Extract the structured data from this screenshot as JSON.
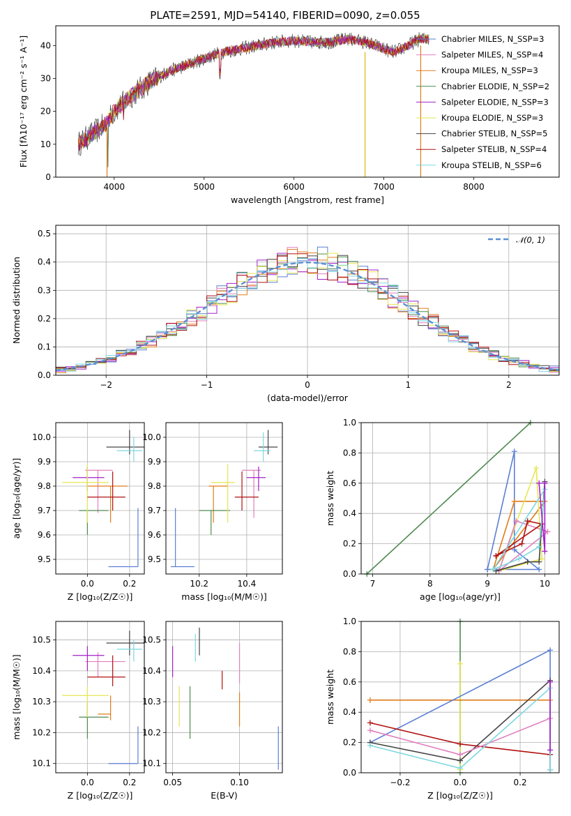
{
  "title": "PLATE=2591, MJD=54140, FIBERID=0090, z=0.055",
  "colors": {
    "chabrier_miles": "#5b7fd4",
    "salpeter_miles": "#e07fbf",
    "kroupa_miles": "#e07b1a",
    "chabrier_elodie": "#4f8a4f",
    "salpeter_elodie": "#a020c8",
    "kroupa_elodie": "#e6e650",
    "chabrier_stelib": "#444444",
    "salpeter_stelib": "#b01010",
    "kroupa_stelib": "#7dd8e0"
  },
  "chart_data": [
    {
      "type": "line",
      "xlabel": "wavelength [Angstrom, rest frame]",
      "ylabel": "Flux [fλ10⁻¹⁷ erg cm⁻² s⁻¹ A⁻¹]",
      "xlim": [
        3350,
        8950
      ],
      "ylim": [
        0,
        46
      ],
      "xticks": [
        4000,
        5000,
        6000,
        7000,
        8000
      ],
      "yticks": [
        0,
        10,
        20,
        30,
        40
      ],
      "legend_position": "right",
      "series": [
        {
          "name": "Chabrier MILES, N_SSP=3",
          "color": "#5b7fd4"
        },
        {
          "name": "Salpeter MILES, N_SSP=4",
          "color": "#e07fbf"
        },
        {
          "name": "Kroupa MILES, N_SSP=3",
          "color": "#e07b1a"
        },
        {
          "name": "Chabrier ELODIE, N_SSP=2",
          "color": "#4f8a4f"
        },
        {
          "name": "Salpeter ELODIE, N_SSP=3",
          "color": "#a020c8"
        },
        {
          "name": "Kroupa ELODIE, N_SSP=3",
          "color": "#e6e650"
        },
        {
          "name": "Chabrier STELIB, N_SSP=5",
          "color": "#444444"
        },
        {
          "name": "Salpeter STELIB, N_SSP=4",
          "color": "#b01010"
        },
        {
          "name": "Kroupa STELIB, N_SSP=6",
          "color": "#7dd8e0"
        }
      ],
      "continuum": {
        "x": [
          3600,
          3750,
          3900,
          4000,
          4200,
          4400,
          4600,
          4800,
          5000,
          5200,
          5400,
          5600,
          5800,
          6000,
          6200,
          6400,
          6600,
          6800,
          7000,
          7100,
          7200,
          7400,
          7500
        ],
        "y": [
          10,
          13,
          16,
          20,
          25,
          29,
          32,
          34,
          36,
          38,
          39,
          40,
          41,
          41.5,
          41,
          41,
          42,
          41,
          39,
          38,
          39,
          42,
          42
        ]
      }
    },
    {
      "type": "line",
      "xlabel": "(data-model)/error",
      "ylabel": "Normed distribution",
      "xlim": [
        -2.5,
        2.5
      ],
      "ylim": [
        0,
        0.53
      ],
      "xticks": [
        -2,
        -1,
        0,
        1,
        2
      ],
      "yticks": [
        0.0,
        0.1,
        0.2,
        0.3,
        0.4,
        0.5
      ],
      "legend": "𝒩(0, 1)",
      "legend_position": "top-right",
      "bin_width": 0.1
    },
    {
      "type": "scatter",
      "xlabel": "Z [log₁₀(Z/Z☉)]",
      "ylabel": "age  [log₁₀(age/yr)]",
      "xlim": [
        -0.15,
        0.27
      ],
      "ylim": [
        9.44,
        10.06
      ],
      "xticks": [
        0.0,
        0.2
      ],
      "yticks": [
        9.5,
        9.6,
        9.7,
        9.8,
        9.9,
        10.0
      ],
      "points": [
        {
          "c": "#5b7fd4",
          "x": 0.24,
          "xe": [
            0.1,
            0.24
          ],
          "y": 9.47,
          "ye": [
            9.47,
            9.71
          ]
        },
        {
          "c": "#e07fbf",
          "x": 0.05,
          "xe": [
            -0.01,
            0.12
          ],
          "y": 9.865,
          "ye": [
            9.69,
            9.865
          ]
        },
        {
          "c": "#e07b1a",
          "x": 0.11,
          "xe": [
            0.0,
            0.19
          ],
          "y": 9.8,
          "ye": [
            9.65,
            9.8
          ]
        },
        {
          "c": "#4f8a4f",
          "x": 0.0,
          "xe": [
            -0.04,
            0.1
          ],
          "y": 9.7,
          "ye": [
            9.6,
            9.7
          ]
        },
        {
          "c": "#a020c8",
          "x": 0.0,
          "xe": [
            -0.07,
            0.08
          ],
          "y": 9.835,
          "ye": [
            9.78,
            9.88
          ]
        },
        {
          "c": "#e6e650",
          "x": 0.0,
          "xe": [
            -0.12,
            0.1
          ],
          "y": 9.815,
          "ye": [
            9.65,
            9.89
          ]
        },
        {
          "c": "#444444",
          "x": 0.2,
          "xe": [
            0.09,
            0.27
          ],
          "y": 9.96,
          "ye": [
            9.93,
            10.03
          ]
        },
        {
          "c": "#b01010",
          "x": 0.12,
          "xe": [
            0.0,
            0.18
          ],
          "y": 9.755,
          "ye": [
            9.7,
            9.86
          ]
        },
        {
          "c": "#7dd8e0",
          "x": 0.22,
          "xe": [
            0.14,
            0.26
          ],
          "y": 9.945,
          "ye": [
            9.9,
            10.0
          ]
        }
      ]
    },
    {
      "type": "scatter",
      "xlabel": "mass [log₁₀(M/M☉)]",
      "ylabel": "",
      "xlim": [
        10.06,
        10.55
      ],
      "ylim": [
        9.44,
        10.06
      ],
      "xticks": [
        10.2,
        10.4
      ],
      "yticks": [
        9.5,
        9.6,
        9.7,
        9.8,
        9.9,
        10.0
      ],
      "points": [
        {
          "c": "#5b7fd4",
          "x": 10.1,
          "xe": [
            10.08,
            10.18
          ],
          "y": 9.47,
          "ye": [
            9.47,
            9.71
          ]
        },
        {
          "c": "#e07fbf",
          "x": 10.43,
          "xe": [
            10.38,
            10.46
          ],
          "y": 9.865,
          "ye": [
            9.67,
            9.865
          ]
        },
        {
          "c": "#e07b1a",
          "x": 10.26,
          "xe": [
            10.24,
            10.32
          ],
          "y": 9.8,
          "ye": [
            9.65,
            9.8
          ]
        },
        {
          "c": "#4f8a4f",
          "x": 10.25,
          "xe": [
            10.2,
            10.33
          ],
          "y": 9.7,
          "ye": [
            9.6,
            9.7
          ]
        },
        {
          "c": "#a020c8",
          "x": 10.45,
          "xe": [
            10.4,
            10.48
          ],
          "y": 9.835,
          "ye": [
            9.78,
            9.88
          ]
        },
        {
          "c": "#e6e650",
          "x": 10.32,
          "xe": [
            10.25,
            10.35
          ],
          "y": 9.815,
          "ye": [
            9.65,
            9.89
          ]
        },
        {
          "c": "#444444",
          "x": 10.49,
          "xe": [
            10.45,
            10.53
          ],
          "y": 9.96,
          "ye": [
            9.93,
            10.03
          ]
        },
        {
          "c": "#b01010",
          "x": 10.38,
          "xe": [
            10.35,
            10.45
          ],
          "y": 9.755,
          "ye": [
            9.7,
            9.86
          ]
        },
        {
          "c": "#7dd8e0",
          "x": 10.47,
          "xe": [
            10.43,
            10.5
          ],
          "y": 9.945,
          "ye": [
            9.9,
            10.02
          ]
        }
      ]
    },
    {
      "type": "line",
      "xlabel": "age  [log₁₀(age/yr)]",
      "ylabel": "mass weight",
      "xlim": [
        6.8,
        10.25
      ],
      "ylim": [
        0,
        1
      ],
      "xticks": [
        7,
        8,
        9,
        10
      ],
      "yticks": [
        0.0,
        0.2,
        0.4,
        0.6,
        0.8,
        1.0
      ],
      "series": [
        {
          "c": "#4f8a4f",
          "x": [
            6.9,
            9.75
          ],
          "y": [
            0.0,
            1.0
          ]
        },
        {
          "c": "#5b7fd4",
          "x": [
            9.0,
            9.47,
            9.47,
            9.9,
            9.0
          ],
          "y": [
            0.03,
            0.81,
            0.16,
            0.03,
            0.03
          ]
        },
        {
          "c": "#e07b1a",
          "x": [
            9.1,
            9.47,
            10.0,
            9.1
          ],
          "y": [
            0.03,
            0.48,
            0.48,
            0.03
          ]
        },
        {
          "c": "#e6e650",
          "x": [
            9.2,
            9.85,
            9.95,
            9.2
          ],
          "y": [
            0.02,
            0.7,
            0.1,
            0.02
          ]
        },
        {
          "c": "#e07fbf",
          "x": [
            9.2,
            9.5,
            10.05,
            9.2
          ],
          "y": [
            0.02,
            0.35,
            0.28,
            0.02
          ]
        },
        {
          "c": "#b01010",
          "x": [
            9.15,
            9.6,
            9.7,
            9.95,
            9.15
          ],
          "y": [
            0.12,
            0.2,
            0.35,
            0.33,
            0.12
          ]
        },
        {
          "c": "#444444",
          "x": [
            9.15,
            9.7,
            9.9,
            10.0
          ],
          "y": [
            0.02,
            0.08,
            0.08,
            0.61
          ]
        },
        {
          "c": "#7dd8e0",
          "x": [
            9.1,
            9.55,
            9.9,
            10.0,
            9.1
          ],
          "y": [
            0.03,
            0.1,
            0.18,
            0.56,
            0.03
          ]
        },
        {
          "c": "#a020c8",
          "x": [
            9.9,
            10.0,
            10.0
          ],
          "y": [
            0.6,
            0.15,
            0.6
          ]
        }
      ]
    },
    {
      "type": "scatter",
      "xlabel": "Z [log₁₀(Z/Z☉)]",
      "ylabel": "mass [log₁₀(M/M☉)]",
      "xlim": [
        -0.15,
        0.27
      ],
      "ylim": [
        10.07,
        10.56
      ],
      "xticks": [
        0.0,
        0.2
      ],
      "yticks": [
        10.1,
        10.2,
        10.3,
        10.4,
        10.5
      ],
      "points": [
        {
          "c": "#5b7fd4",
          "x": 0.24,
          "xe": [
            0.1,
            0.24
          ],
          "y": 10.1,
          "ye": [
            10.1,
            10.22
          ]
        },
        {
          "c": "#e07fbf",
          "x": 0.05,
          "xe": [
            -0.01,
            0.18
          ],
          "y": 10.43,
          "ye": [
            10.38,
            10.46
          ]
        },
        {
          "c": "#e07b1a",
          "x": 0.11,
          "xe": [
            0.05,
            0.11
          ],
          "y": 10.26,
          "ye": [
            10.24,
            10.32
          ]
        },
        {
          "c": "#4f8a4f",
          "x": 0.0,
          "xe": [
            -0.04,
            0.1
          ],
          "y": 10.25,
          "ye": [
            10.18,
            10.3
          ]
        },
        {
          "c": "#a020c8",
          "x": 0.0,
          "xe": [
            -0.07,
            0.08
          ],
          "y": 10.45,
          "ye": [
            10.4,
            10.48
          ]
        },
        {
          "c": "#e6e650",
          "x": 0.0,
          "xe": [
            -0.12,
            0.1
          ],
          "y": 10.32,
          "ye": [
            10.25,
            10.35
          ]
        },
        {
          "c": "#444444",
          "x": 0.2,
          "xe": [
            0.09,
            0.27
          ],
          "y": 10.49,
          "ye": [
            10.45,
            10.53
          ]
        },
        {
          "c": "#b01010",
          "x": 0.12,
          "xe": [
            0.0,
            0.18
          ],
          "y": 10.38,
          "ye": [
            10.35,
            10.45
          ]
        },
        {
          "c": "#7dd8e0",
          "x": 0.22,
          "xe": [
            0.14,
            0.26
          ],
          "y": 10.47,
          "ye": [
            10.43,
            10.5
          ]
        }
      ]
    },
    {
      "type": "scatter",
      "xlabel": "E(B-V)",
      "ylabel": "",
      "xlim": [
        0.045,
        0.132
      ],
      "ylim": [
        10.07,
        10.56
      ],
      "xticks": [
        0.05,
        0.1
      ],
      "yticks": [
        10.1,
        10.2,
        10.3,
        10.4,
        10.5
      ],
      "points": [
        {
          "c": "#5b7fd4",
          "x": 0.129,
          "ye": [
            10.08,
            10.22
          ]
        },
        {
          "c": "#e07fbf",
          "x": 0.1,
          "ye": [
            10.36,
            10.49
          ]
        },
        {
          "c": "#e07b1a",
          "x": 0.1,
          "ye": [
            10.22,
            10.33
          ]
        },
        {
          "c": "#4f8a4f",
          "x": 0.063,
          "ye": [
            10.18,
            10.35
          ]
        },
        {
          "c": "#a020c8",
          "x": 0.05,
          "ye": [
            10.38,
            10.48
          ]
        },
        {
          "c": "#e6e650",
          "x": 0.055,
          "ye": [
            10.22,
            10.35
          ]
        },
        {
          "c": "#444444",
          "x": 0.07,
          "ye": [
            10.45,
            10.54
          ]
        },
        {
          "c": "#b01010",
          "x": 0.087,
          "ye": [
            10.34,
            10.4
          ]
        },
        {
          "c": "#7dd8e0",
          "x": 0.067,
          "ye": [
            10.43,
            10.52
          ]
        }
      ]
    },
    {
      "type": "line",
      "xlabel": "Z [log₁₀(Z/Z☉)]",
      "ylabel": "mass weight",
      "xlim": [
        -0.33,
        0.33
      ],
      "ylim": [
        0,
        1
      ],
      "xticks": [
        -0.2,
        0.0,
        0.2
      ],
      "yticks": [
        0.0,
        0.2,
        0.4,
        0.6,
        0.8,
        1.0
      ],
      "series": [
        {
          "c": "#4f8a4f",
          "x": [
            0.0,
            0.0
          ],
          "y": [
            0.0,
            1.0
          ]
        },
        {
          "c": "#e6e650",
          "x": [
            0.0,
            0.0
          ],
          "y": [
            0.02,
            0.72
          ]
        },
        {
          "c": "#e07b1a",
          "x": [
            -0.3,
            0.3
          ],
          "y": [
            0.48,
            0.48
          ]
        },
        {
          "c": "#5b7fd4",
          "x": [
            -0.3,
            0.3,
            0.3
          ],
          "y": [
            0.2,
            0.81,
            0.02
          ]
        },
        {
          "c": "#444444",
          "x": [
            -0.3,
            0.0,
            0.3,
            0.3
          ],
          "y": [
            0.2,
            0.08,
            0.61,
            0.02
          ]
        },
        {
          "c": "#b01010",
          "x": [
            -0.3,
            0.0,
            0.3
          ],
          "y": [
            0.33,
            0.19,
            0.12
          ]
        },
        {
          "c": "#e07fbf",
          "x": [
            -0.3,
            0.0,
            0.3,
            0.3
          ],
          "y": [
            0.28,
            0.12,
            0.36,
            0.02
          ]
        },
        {
          "c": "#7dd8e0",
          "x": [
            -0.3,
            0.0,
            0.3,
            0.3
          ],
          "y": [
            0.18,
            0.03,
            0.56,
            0.02
          ]
        },
        {
          "c": "#a020c8",
          "x": [
            0.3,
            0.3
          ],
          "y": [
            0.15,
            0.6
          ]
        }
      ]
    }
  ]
}
